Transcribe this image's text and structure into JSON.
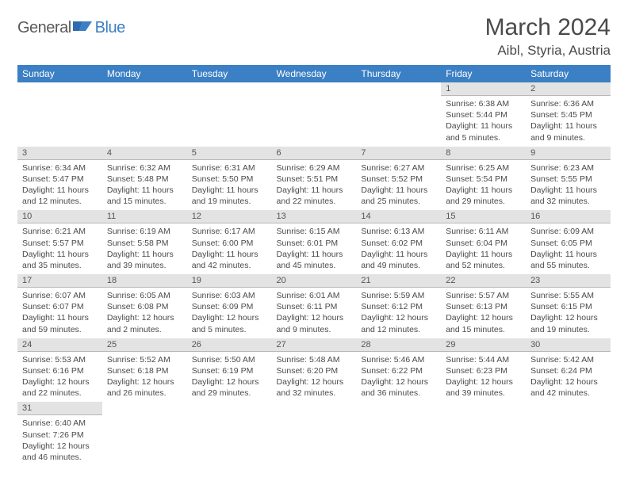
{
  "logo": {
    "text1": "General",
    "text2": "Blue"
  },
  "title": "March 2024",
  "location": "Aibl, Styria, Austria",
  "colors": {
    "header_bg": "#3b7fc4",
    "header_fg": "#ffffff",
    "daynum_bg": "#e3e3e3",
    "daynum_border": "#b8b8b8",
    "text": "#4a4a4a",
    "logo_gray": "#5a5a5a",
    "logo_blue": "#3b7fc4"
  },
  "typography": {
    "title_size_pt": 30,
    "location_size_pt": 17,
    "header_size_pt": 12,
    "daynum_size_pt": 11,
    "cell_size_pt": 10.5
  },
  "columns": [
    "Sunday",
    "Monday",
    "Tuesday",
    "Wednesday",
    "Thursday",
    "Friday",
    "Saturday"
  ],
  "weeks": [
    [
      null,
      null,
      null,
      null,
      null,
      {
        "n": "1",
        "sr": "Sunrise: 6:38 AM",
        "ss": "Sunset: 5:44 PM",
        "d1": "Daylight: 11 hours",
        "d2": "and 5 minutes."
      },
      {
        "n": "2",
        "sr": "Sunrise: 6:36 AM",
        "ss": "Sunset: 5:45 PM",
        "d1": "Daylight: 11 hours",
        "d2": "and 9 minutes."
      }
    ],
    [
      {
        "n": "3",
        "sr": "Sunrise: 6:34 AM",
        "ss": "Sunset: 5:47 PM",
        "d1": "Daylight: 11 hours",
        "d2": "and 12 minutes."
      },
      {
        "n": "4",
        "sr": "Sunrise: 6:32 AM",
        "ss": "Sunset: 5:48 PM",
        "d1": "Daylight: 11 hours",
        "d2": "and 15 minutes."
      },
      {
        "n": "5",
        "sr": "Sunrise: 6:31 AM",
        "ss": "Sunset: 5:50 PM",
        "d1": "Daylight: 11 hours",
        "d2": "and 19 minutes."
      },
      {
        "n": "6",
        "sr": "Sunrise: 6:29 AM",
        "ss": "Sunset: 5:51 PM",
        "d1": "Daylight: 11 hours",
        "d2": "and 22 minutes."
      },
      {
        "n": "7",
        "sr": "Sunrise: 6:27 AM",
        "ss": "Sunset: 5:52 PM",
        "d1": "Daylight: 11 hours",
        "d2": "and 25 minutes."
      },
      {
        "n": "8",
        "sr": "Sunrise: 6:25 AM",
        "ss": "Sunset: 5:54 PM",
        "d1": "Daylight: 11 hours",
        "d2": "and 29 minutes."
      },
      {
        "n": "9",
        "sr": "Sunrise: 6:23 AM",
        "ss": "Sunset: 5:55 PM",
        "d1": "Daylight: 11 hours",
        "d2": "and 32 minutes."
      }
    ],
    [
      {
        "n": "10",
        "sr": "Sunrise: 6:21 AM",
        "ss": "Sunset: 5:57 PM",
        "d1": "Daylight: 11 hours",
        "d2": "and 35 minutes."
      },
      {
        "n": "11",
        "sr": "Sunrise: 6:19 AM",
        "ss": "Sunset: 5:58 PM",
        "d1": "Daylight: 11 hours",
        "d2": "and 39 minutes."
      },
      {
        "n": "12",
        "sr": "Sunrise: 6:17 AM",
        "ss": "Sunset: 6:00 PM",
        "d1": "Daylight: 11 hours",
        "d2": "and 42 minutes."
      },
      {
        "n": "13",
        "sr": "Sunrise: 6:15 AM",
        "ss": "Sunset: 6:01 PM",
        "d1": "Daylight: 11 hours",
        "d2": "and 45 minutes."
      },
      {
        "n": "14",
        "sr": "Sunrise: 6:13 AM",
        "ss": "Sunset: 6:02 PM",
        "d1": "Daylight: 11 hours",
        "d2": "and 49 minutes."
      },
      {
        "n": "15",
        "sr": "Sunrise: 6:11 AM",
        "ss": "Sunset: 6:04 PM",
        "d1": "Daylight: 11 hours",
        "d2": "and 52 minutes."
      },
      {
        "n": "16",
        "sr": "Sunrise: 6:09 AM",
        "ss": "Sunset: 6:05 PM",
        "d1": "Daylight: 11 hours",
        "d2": "and 55 minutes."
      }
    ],
    [
      {
        "n": "17",
        "sr": "Sunrise: 6:07 AM",
        "ss": "Sunset: 6:07 PM",
        "d1": "Daylight: 11 hours",
        "d2": "and 59 minutes."
      },
      {
        "n": "18",
        "sr": "Sunrise: 6:05 AM",
        "ss": "Sunset: 6:08 PM",
        "d1": "Daylight: 12 hours",
        "d2": "and 2 minutes."
      },
      {
        "n": "19",
        "sr": "Sunrise: 6:03 AM",
        "ss": "Sunset: 6:09 PM",
        "d1": "Daylight: 12 hours",
        "d2": "and 5 minutes."
      },
      {
        "n": "20",
        "sr": "Sunrise: 6:01 AM",
        "ss": "Sunset: 6:11 PM",
        "d1": "Daylight: 12 hours",
        "d2": "and 9 minutes."
      },
      {
        "n": "21",
        "sr": "Sunrise: 5:59 AM",
        "ss": "Sunset: 6:12 PM",
        "d1": "Daylight: 12 hours",
        "d2": "and 12 minutes."
      },
      {
        "n": "22",
        "sr": "Sunrise: 5:57 AM",
        "ss": "Sunset: 6:13 PM",
        "d1": "Daylight: 12 hours",
        "d2": "and 15 minutes."
      },
      {
        "n": "23",
        "sr": "Sunrise: 5:55 AM",
        "ss": "Sunset: 6:15 PM",
        "d1": "Daylight: 12 hours",
        "d2": "and 19 minutes."
      }
    ],
    [
      {
        "n": "24",
        "sr": "Sunrise: 5:53 AM",
        "ss": "Sunset: 6:16 PM",
        "d1": "Daylight: 12 hours",
        "d2": "and 22 minutes."
      },
      {
        "n": "25",
        "sr": "Sunrise: 5:52 AM",
        "ss": "Sunset: 6:18 PM",
        "d1": "Daylight: 12 hours",
        "d2": "and 26 minutes."
      },
      {
        "n": "26",
        "sr": "Sunrise: 5:50 AM",
        "ss": "Sunset: 6:19 PM",
        "d1": "Daylight: 12 hours",
        "d2": "and 29 minutes."
      },
      {
        "n": "27",
        "sr": "Sunrise: 5:48 AM",
        "ss": "Sunset: 6:20 PM",
        "d1": "Daylight: 12 hours",
        "d2": "and 32 minutes."
      },
      {
        "n": "28",
        "sr": "Sunrise: 5:46 AM",
        "ss": "Sunset: 6:22 PM",
        "d1": "Daylight: 12 hours",
        "d2": "and 36 minutes."
      },
      {
        "n": "29",
        "sr": "Sunrise: 5:44 AM",
        "ss": "Sunset: 6:23 PM",
        "d1": "Daylight: 12 hours",
        "d2": "and 39 minutes."
      },
      {
        "n": "30",
        "sr": "Sunrise: 5:42 AM",
        "ss": "Sunset: 6:24 PM",
        "d1": "Daylight: 12 hours",
        "d2": "and 42 minutes."
      }
    ],
    [
      {
        "n": "31",
        "sr": "Sunrise: 6:40 AM",
        "ss": "Sunset: 7:26 PM",
        "d1": "Daylight: 12 hours",
        "d2": "and 46 minutes."
      },
      null,
      null,
      null,
      null,
      null,
      null
    ]
  ]
}
